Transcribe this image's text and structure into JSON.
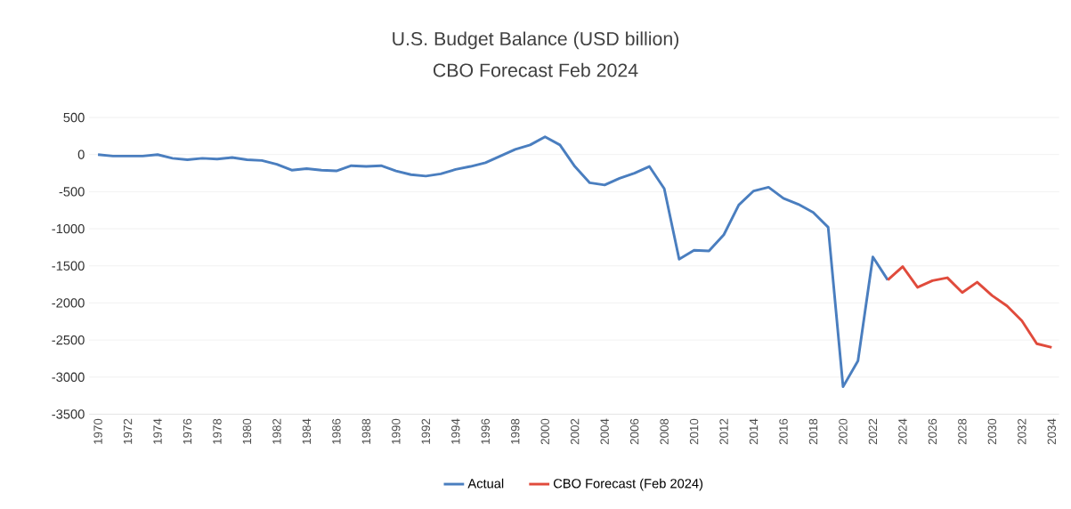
{
  "chart_data": {
    "type": "line",
    "title": "U.S. Budget Balance (USD billion)",
    "subtitle": "CBO Forecast  Feb 2024",
    "categories": [
      "1970",
      null,
      "1972",
      null,
      "1974",
      null,
      "1976",
      null,
      "1978",
      null,
      "1980",
      null,
      "1982",
      null,
      "1984",
      null,
      "1986",
      null,
      "1988",
      null,
      "1990",
      null,
      "1992",
      null,
      "1994",
      null,
      "1996",
      null,
      "1998",
      null,
      "2000",
      null,
      "2002",
      null,
      "2004",
      null,
      "2006",
      null,
      "2008",
      null,
      "2010",
      null,
      "2012",
      null,
      "2014",
      null,
      "2016",
      null,
      "2018",
      null,
      "2020",
      null,
      "2022",
      null,
      "2024",
      null,
      "2026",
      null,
      "2028",
      null,
      "2030",
      null,
      "2032",
      null,
      "2034"
    ],
    "series": [
      {
        "name": "Actual",
        "color": "#4a7ebf",
        "values": [
          0,
          -20,
          -20,
          -20,
          0,
          -50,
          -70,
          -50,
          -60,
          -40,
          -70,
          -80,
          -130,
          -210,
          -190,
          -210,
          -220,
          -150,
          -160,
          -150,
          -220,
          -270,
          -290,
          -260,
          -200,
          -160,
          -110,
          -20,
          70,
          130,
          240,
          130,
          -160,
          -380,
          -410,
          -320,
          -250,
          -160,
          -460,
          -1410,
          -1290,
          -1300,
          -1080,
          -680,
          -490,
          -440,
          -590,
          -670,
          -780,
          -980,
          -3130,
          -2780,
          -1380,
          -1690,
          null,
          null,
          null,
          null,
          null,
          null,
          null,
          null,
          null,
          null,
          null
        ]
      },
      {
        "name": "CBO Forecast (Feb 2024)",
        "color": "#e04b3c",
        "values": [
          null,
          null,
          null,
          null,
          null,
          null,
          null,
          null,
          null,
          null,
          null,
          null,
          null,
          null,
          null,
          null,
          null,
          null,
          null,
          null,
          null,
          null,
          null,
          null,
          null,
          null,
          null,
          null,
          null,
          null,
          null,
          null,
          null,
          null,
          null,
          null,
          null,
          null,
          null,
          null,
          null,
          null,
          null,
          null,
          null,
          null,
          null,
          null,
          null,
          null,
          null,
          null,
          null,
          -1690,
          -1510,
          -1790,
          -1700,
          -1660,
          -1860,
          -1720,
          -1900,
          -2040,
          -2240,
          -2550,
          -2600
        ]
      }
    ],
    "ylim": [
      -3500,
      500
    ],
    "yticks": [
      -3500,
      -3000,
      -2500,
      -2000,
      -1500,
      -1000,
      -500,
      0,
      500
    ],
    "grid": "y",
    "legend": "bottom"
  }
}
